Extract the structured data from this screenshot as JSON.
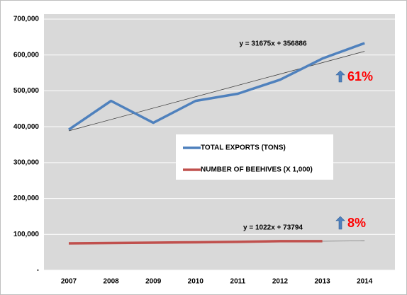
{
  "chart_data": {
    "type": "line",
    "categories": [
      "2007",
      "2008",
      "2009",
      "2010",
      "2011",
      "2012",
      "2013",
      "2014"
    ],
    "series": [
      {
        "name": "TOTAL EXPORTS (TONS)",
        "color": "#4f81bd",
        "values": [
          392000,
          472000,
          411000,
          472000,
          492000,
          531000,
          590000,
          633000
        ]
      },
      {
        "name": "NUMBER OF BEEHIVES (X 1,000)",
        "color": "#c0504d",
        "values": [
          75000,
          76000,
          77000,
          78000,
          79000,
          81000,
          81000,
          null
        ]
      }
    ],
    "trendlines": [
      {
        "label": "y = 31675x + 356886",
        "slope": 31675,
        "intercept": 356886
      },
      {
        "label": "y = 1022x + 73794",
        "slope": 1022,
        "intercept": 73794
      }
    ],
    "annotations": [
      "61%",
      "8%"
    ],
    "ylim": [
      0,
      700000
    ],
    "yticks": [
      {
        "value": 0,
        "label": "-"
      },
      {
        "value": 100000,
        "label": "100,000"
      },
      {
        "value": 200000,
        "label": "200,000"
      },
      {
        "value": 300000,
        "label": "300,000"
      },
      {
        "value": 400000,
        "label": "400,000"
      },
      {
        "value": 500000,
        "label": "500,000"
      },
      {
        "value": 600000,
        "label": "600,000"
      },
      {
        "value": 700000,
        "label": "700,000"
      }
    ],
    "grid": true
  }
}
